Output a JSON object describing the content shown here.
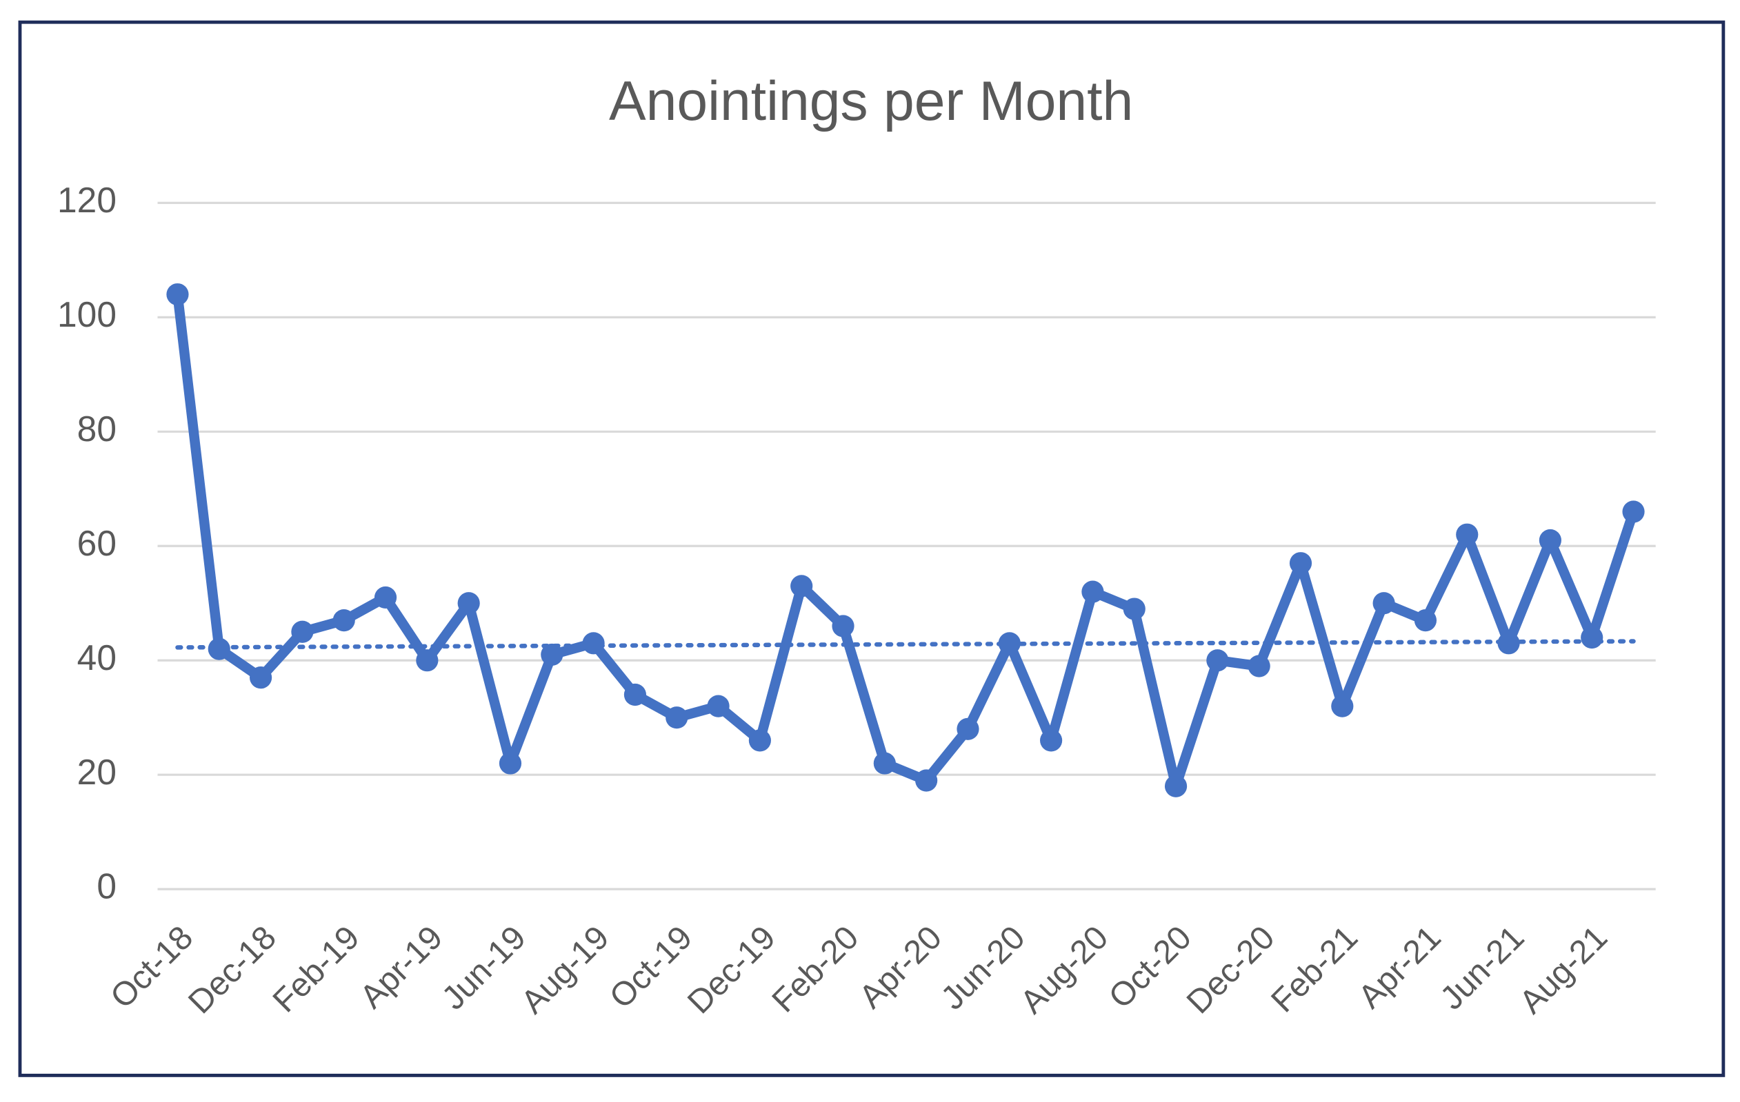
{
  "chart_data": {
    "type": "line",
    "title": "Anointings per Month",
    "categories": [
      "Oct-18",
      null,
      "Dec-18",
      null,
      "Feb-19",
      null,
      "Apr-19",
      null,
      "Jun-19",
      null,
      "Aug-19",
      null,
      "Oct-19",
      null,
      "Dec-19",
      null,
      "Feb-20",
      null,
      "Apr-20",
      null,
      "Jun-20",
      null,
      "Aug-20",
      null,
      "Oct-20",
      null,
      "Dec-20",
      null,
      "Feb-21",
      null,
      "Apr-21",
      null,
      "Jun-21",
      null,
      "Aug-21",
      null
    ],
    "values": [
      104,
      42,
      37,
      45,
      47,
      51,
      40,
      50,
      22,
      41,
      43,
      34,
      30,
      32,
      26,
      53,
      46,
      22,
      19,
      28,
      43,
      26,
      52,
      49,
      18,
      40,
      39,
      57,
      32,
      50,
      47,
      62,
      43,
      61,
      44,
      66
    ],
    "color": "#4472c4",
    "ylim": [
      0,
      120
    ],
    "yticks": [
      0,
      20,
      40,
      60,
      80,
      100,
      120
    ],
    "grid": true,
    "trendline": "linear"
  }
}
